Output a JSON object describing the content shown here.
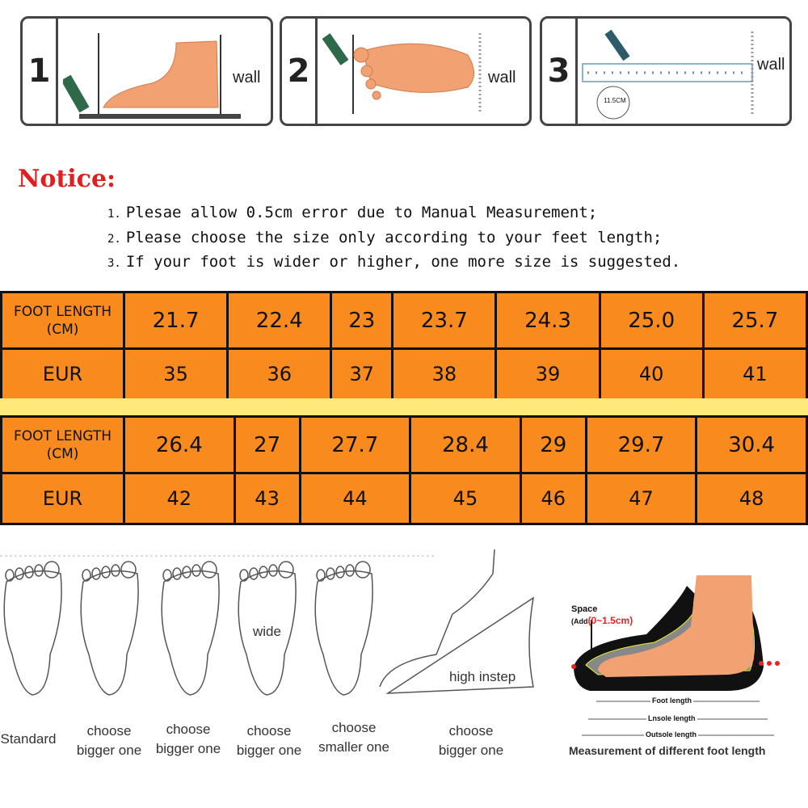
{
  "steps": [
    {
      "number": "1",
      "label": "wall"
    },
    {
      "number": "2",
      "label": "wall"
    },
    {
      "number": "3",
      "label": "wall",
      "ruler_label": "11.5CM"
    }
  ],
  "notice": {
    "title": "Notice:",
    "items": [
      {
        "num": "1.",
        "text": "Plesae allow 0.5cm error due to Manual Measurement;"
      },
      {
        "num": "2.",
        "text": "Please choose the size only according to your feet length;"
      },
      {
        "num": "3.",
        "text": "If your foot is wider or higher, one more size is suggested."
      }
    ]
  },
  "size_table": {
    "row_header_length": [
      "FOOT LENGTH",
      "(CM)"
    ],
    "row_header_eur": "EUR",
    "blocks": [
      {
        "foot_length": [
          "21.7",
          "22.4",
          "23",
          "23.7",
          "24.3",
          "25.0",
          "25.7"
        ],
        "eur": [
          "35",
          "36",
          "37",
          "38",
          "39",
          "40",
          "41"
        ]
      },
      {
        "foot_length": [
          "26.4",
          "27",
          "27.7",
          "28.4",
          "29",
          "29.7",
          "30.4"
        ],
        "eur": [
          "42",
          "43",
          "44",
          "45",
          "46",
          "47",
          "48"
        ]
      }
    ],
    "colors": {
      "cell": "#f88a1e",
      "band": "#ffe97a",
      "border": "#111111"
    }
  },
  "foot_types": [
    {
      "label": "Standard"
    },
    {
      "label": "choose\nbigger one"
    },
    {
      "label": "choose\nbigger one"
    },
    {
      "label": "choose\nbigger one",
      "annotation": "wide"
    },
    {
      "label": "choose\nsmaller one"
    },
    {
      "label": "choose\nbigger one",
      "annotation": "high instep"
    }
  ],
  "measurement": {
    "space_label": "Space",
    "add_prefix": "(Add",
    "add_value": "(0~1.5cm)",
    "foot_length": "Foot length",
    "insole_length": "Lnsole length",
    "outsole_length": "Outsole length",
    "caption": "Measurement of different foot length"
  }
}
